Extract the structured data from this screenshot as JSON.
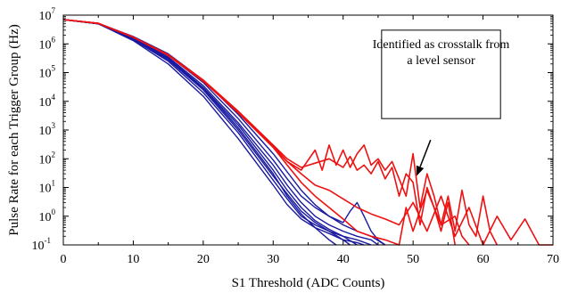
{
  "chart_data": {
    "type": "line",
    "title": "",
    "xlabel": "S1 Threshold (ADC Counts)",
    "ylabel": "Pulse Rate for each Trigger Group (Hz)",
    "xlim": [
      0,
      70
    ],
    "ylim": [
      0.1,
      10000000
    ],
    "yscale": "log",
    "grid": false,
    "x_ticks": [
      0,
      10,
      20,
      30,
      40,
      50,
      60,
      70
    ],
    "y_ticks": [
      {
        "value": 0.1,
        "base": "10",
        "exp": "-1"
      },
      {
        "value": 1,
        "base": "10",
        "exp": "0"
      },
      {
        "value": 10,
        "base": "10",
        "exp": "1"
      },
      {
        "value": 100,
        "base": "10",
        "exp": "2"
      },
      {
        "value": 1000,
        "base": "10",
        "exp": "3"
      },
      {
        "value": 10000,
        "base": "10",
        "exp": "4"
      },
      {
        "value": 100000,
        "base": "10",
        "exp": "5"
      },
      {
        "value": 1000000,
        "base": "10",
        "exp": "6"
      },
      {
        "value": 10000000,
        "base": "10",
        "exp": "7"
      }
    ],
    "colors": {
      "blue_series": "#1a1aa0",
      "red_series": "#ee1111",
      "axis": "#000000"
    },
    "annotation": {
      "text_lines": [
        "Identified as crosstalk from",
        "a level sensor"
      ],
      "arrow_from": [
        52.5,
        450
      ],
      "arrow_to": [
        50.5,
        25
      ]
    },
    "series": [
      {
        "color": "blue",
        "x": [
          0,
          5,
          10,
          15,
          20,
          25,
          30,
          32,
          34,
          36,
          38,
          40,
          42,
          43
        ],
        "y": [
          7000000,
          5000000,
          1500000,
          300000,
          28000,
          1200,
          30,
          5,
          1.2,
          0.4,
          0.25,
          0.15,
          0.12,
          0.1
        ]
      },
      {
        "color": "blue",
        "x": [
          0,
          5,
          10,
          15,
          20,
          25,
          30,
          32,
          34,
          36,
          38,
          40,
          41
        ],
        "y": [
          7000000,
          5000000,
          1400000,
          250000,
          20000,
          800,
          18,
          4,
          1,
          0.5,
          0.3,
          0.15,
          0.1
        ]
      },
      {
        "color": "blue",
        "x": [
          0,
          5,
          10,
          15,
          20,
          25,
          30,
          32,
          34,
          36,
          38,
          39
        ],
        "y": [
          7000000,
          5000000,
          1300000,
          200000,
          15000,
          500,
          12,
          2.5,
          0.8,
          0.4,
          0.15,
          0.1
        ]
      },
      {
        "color": "blue",
        "x": [
          0,
          5,
          10,
          15,
          20,
          25,
          30,
          32,
          34,
          36,
          38,
          40,
          42,
          44,
          45
        ],
        "y": [
          7000000,
          5100000,
          1600000,
          350000,
          35000,
          1800,
          60,
          12,
          3,
          1,
          0.5,
          0.3,
          0.2,
          0.15,
          0.1
        ]
      },
      {
        "color": "blue",
        "x": [
          0,
          5,
          10,
          15,
          20,
          25,
          30,
          32,
          34,
          36,
          38,
          40,
          41,
          42,
          43,
          44,
          45,
          46
        ],
        "y": [
          7000000,
          5200000,
          1700000,
          400000,
          45000,
          2500,
          90,
          20,
          5,
          2,
          1,
          0.6,
          1.5,
          3,
          1,
          0.3,
          0.15,
          0.1
        ]
      },
      {
        "color": "blue",
        "x": [
          0,
          5,
          10,
          15,
          20,
          25,
          30,
          32,
          34,
          36,
          38,
          40,
          42,
          44,
          46
        ],
        "y": [
          7000000,
          5200000,
          1800000,
          450000,
          55000,
          3500,
          150,
          35,
          8,
          2.5,
          1,
          0.5,
          0.3,
          0.2,
          0.1
        ]
      },
      {
        "color": "blue",
        "x": [
          0,
          5,
          10,
          15,
          20,
          25,
          30,
          32,
          34,
          36,
          38,
          40,
          42,
          44
        ],
        "y": [
          7000000,
          5000000,
          1500000,
          320000,
          30000,
          1500,
          40,
          8,
          2,
          0.7,
          0.35,
          0.2,
          0.15,
          0.1
        ]
      },
      {
        "color": "blue",
        "x": [
          0,
          5,
          10,
          15,
          20,
          25,
          30,
          32,
          34,
          36,
          38,
          40,
          42
        ],
        "y": [
          7000000,
          5000000,
          1450000,
          280000,
          25000,
          1000,
          25,
          6,
          1.5,
          0.6,
          0.3,
          0.2,
          0.1
        ]
      },
      {
        "color": "red",
        "x": [
          0,
          5,
          10,
          15,
          20,
          25,
          30,
          32,
          34,
          36,
          37,
          38,
          39,
          40,
          41,
          42,
          43,
          44,
          45,
          46,
          47,
          48,
          49,
          50,
          51,
          52,
          53,
          54,
          55,
          56,
          57,
          58,
          59,
          60,
          61,
          62
        ],
        "y": [
          7000000,
          5200000,
          1700000,
          400000,
          50000,
          4000,
          250,
          80,
          40,
          200,
          40,
          300,
          60,
          200,
          50,
          150,
          300,
          60,
          100,
          40,
          80,
          20,
          5,
          150,
          2,
          30,
          5,
          0.5,
          5,
          0.3,
          8,
          0.5,
          0.2,
          5,
          0.3,
          0.1
        ]
      },
      {
        "color": "red",
        "x": [
          0,
          5,
          10,
          15,
          20,
          25,
          30,
          32,
          34,
          36,
          38,
          40,
          41,
          42,
          43,
          44,
          45,
          46,
          47,
          48,
          49,
          50,
          51,
          52,
          53,
          54,
          55,
          56
        ],
        "y": [
          7000000,
          5200000,
          1700000,
          420000,
          55000,
          4500,
          300,
          100,
          50,
          70,
          100,
          50,
          120,
          40,
          60,
          30,
          80,
          20,
          50,
          5,
          30,
          15,
          0.5,
          10,
          2,
          0.3,
          3,
          0.1
        ]
      },
      {
        "color": "red",
        "x": [
          0,
          5,
          10,
          15,
          20,
          25,
          30,
          32,
          34,
          36,
          38,
          40,
          42,
          44,
          46,
          48,
          50,
          52,
          54,
          56,
          58,
          60,
          62,
          64,
          66,
          68,
          70
        ],
        "y": [
          7000000,
          5200000,
          1700000,
          400000,
          50000,
          4200,
          280,
          80,
          30,
          12,
          8,
          4,
          2,
          1.2,
          0.8,
          0.5,
          3,
          0.3,
          5,
          0.2,
          2,
          0.1,
          1,
          0.15,
          0.8,
          0.1,
          0.1
        ]
      },
      {
        "color": "red",
        "x": [
          0,
          5,
          10,
          15,
          20,
          25,
          30,
          32,
          34,
          36,
          38,
          40,
          42,
          44,
          46,
          48,
          49,
          50,
          52,
          54,
          56,
          57,
          58
        ],
        "y": [
          7000000,
          5200000,
          1700000,
          400000,
          50000,
          4000,
          250,
          60,
          15,
          5,
          2,
          0.8,
          0.3,
          0.2,
          0.15,
          0.1,
          2,
          0.3,
          8,
          0.5,
          1,
          0.2,
          0.1
        ]
      }
    ]
  }
}
